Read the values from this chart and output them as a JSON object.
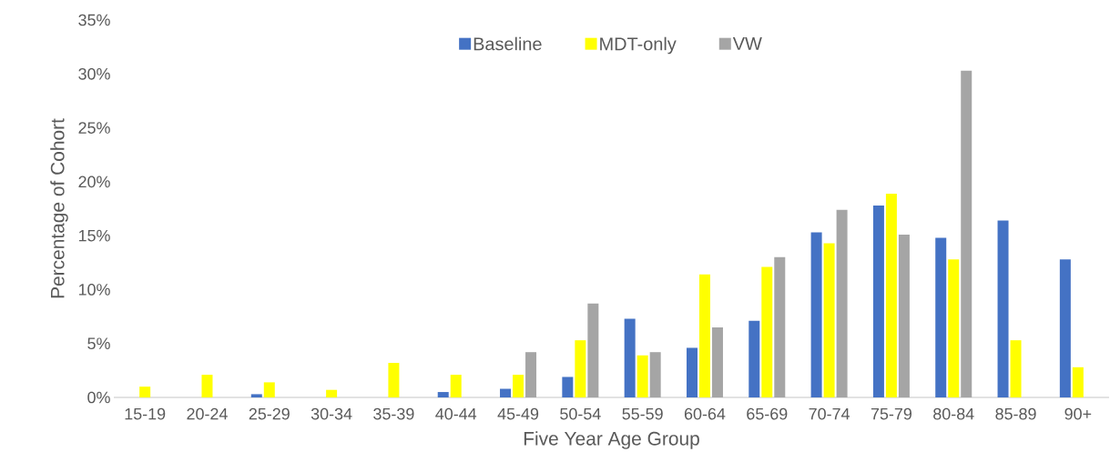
{
  "chart_data": {
    "type": "bar",
    "xlabel": "Five Year Age Group",
    "ylabel": "Percentage of Cohort",
    "categories": [
      "15-19",
      "20-24",
      "25-29",
      "30-34",
      "35-39",
      "40-44",
      "45-49",
      "50-54",
      "55-59",
      "60-64",
      "65-69",
      "70-74",
      "75-79",
      "80-84",
      "85-89",
      "90+"
    ],
    "series": [
      {
        "name": "Baseline",
        "color": "#4472c4",
        "values": [
          0,
          0,
          0.3,
          0,
          0,
          0.5,
          0.8,
          1.9,
          7.3,
          4.6,
          7.1,
          15.3,
          17.8,
          14.8,
          16.4,
          12.8
        ]
      },
      {
        "name": "MDT-only",
        "color": "#ffff00",
        "values": [
          1.0,
          2.1,
          1.4,
          0.7,
          3.2,
          2.1,
          2.1,
          5.3,
          3.9,
          11.4,
          12.1,
          14.3,
          18.9,
          12.8,
          5.3,
          2.8
        ]
      },
      {
        "name": "VW",
        "color": "#a5a5a5",
        "values": [
          0,
          0,
          0,
          0,
          0,
          0,
          4.2,
          8.7,
          4.2,
          6.5,
          13.0,
          17.4,
          15.1,
          30.3,
          0,
          0
        ]
      }
    ],
    "ylim": [
      0,
      35
    ],
    "yticks": [
      {
        "value": 0,
        "label": "0%"
      },
      {
        "value": 5,
        "label": "5%"
      },
      {
        "value": 10,
        "label": "10%"
      },
      {
        "value": 15,
        "label": "15%"
      },
      {
        "value": 20,
        "label": "20%"
      },
      {
        "value": 25,
        "label": "25%"
      },
      {
        "value": 30,
        "label": "30%"
      },
      {
        "value": 35,
        "label": "35%"
      }
    ],
    "legend": "top"
  }
}
